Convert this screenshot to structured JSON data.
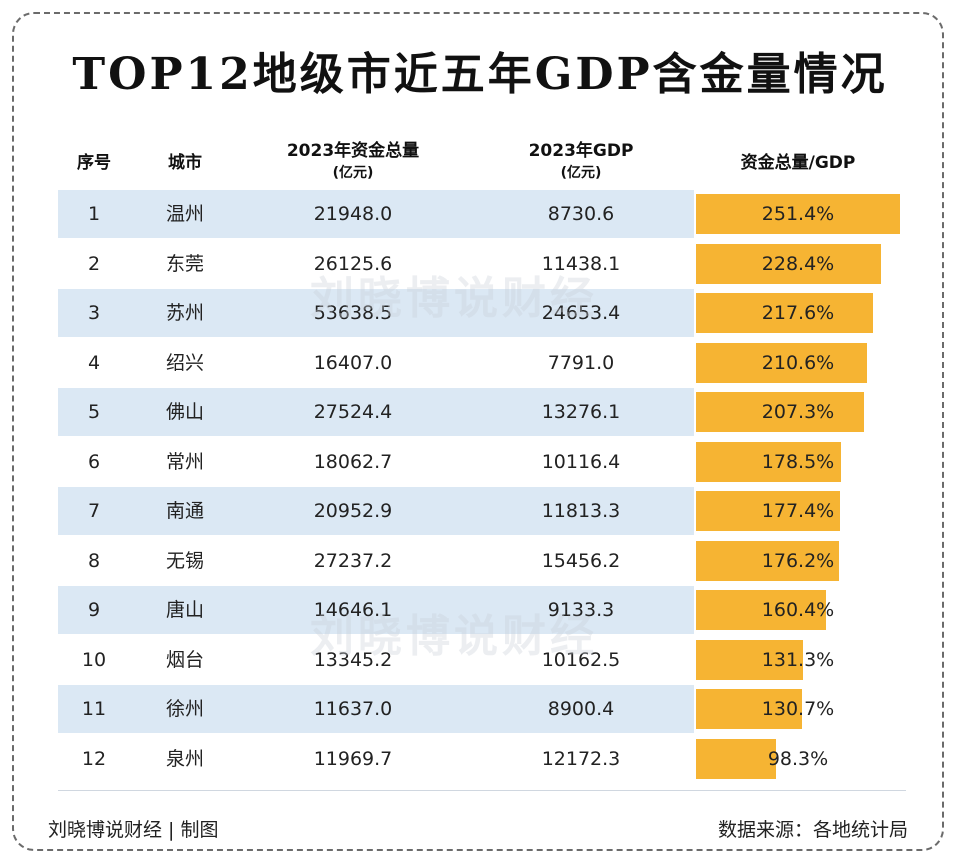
{
  "title": "TOP12地级市近五年GDP含金量情况",
  "headers": {
    "rank": "序号",
    "city": "城市",
    "funds": "2023年资金总量",
    "funds_unit": "(亿元)",
    "gdp": "2023年GDP",
    "gdp_unit": "(亿元)",
    "ratio": "资金总量/GDP"
  },
  "watermark": "刘晓博说财经",
  "footer": {
    "left": "刘晓博说财经 | 制图",
    "right": "数据来源：各地统计局"
  },
  "colors": {
    "bar": "#f6b433",
    "row_stripe": "#dbe8f4"
  },
  "chart_data": {
    "type": "table",
    "columns": [
      "序号",
      "城市",
      "2023年资金总量(亿元)",
      "2023年GDP(亿元)",
      "资金总量/GDP"
    ],
    "rows": [
      {
        "rank": "1",
        "city": "温州",
        "funds": "21948.0",
        "gdp": "8730.6",
        "ratio": "251.4%",
        "ratio_value": 251.4
      },
      {
        "rank": "2",
        "city": "东莞",
        "funds": "26125.6",
        "gdp": "11438.1",
        "ratio": "228.4%",
        "ratio_value": 228.4
      },
      {
        "rank": "3",
        "city": "苏州",
        "funds": "53638.5",
        "gdp": "24653.4",
        "ratio": "217.6%",
        "ratio_value": 217.6
      },
      {
        "rank": "4",
        "city": "绍兴",
        "funds": "16407.0",
        "gdp": "7791.0",
        "ratio": "210.6%",
        "ratio_value": 210.6
      },
      {
        "rank": "5",
        "city": "佛山",
        "funds": "27524.4",
        "gdp": "13276.1",
        "ratio": "207.3%",
        "ratio_value": 207.3
      },
      {
        "rank": "6",
        "city": "常州",
        "funds": "18062.7",
        "gdp": "10116.4",
        "ratio": "178.5%",
        "ratio_value": 178.5
      },
      {
        "rank": "7",
        "city": "南通",
        "funds": "20952.9",
        "gdp": "11813.3",
        "ratio": "177.4%",
        "ratio_value": 177.4
      },
      {
        "rank": "8",
        "city": "无锡",
        "funds": "27237.2",
        "gdp": "15456.2",
        "ratio": "176.2%",
        "ratio_value": 176.2
      },
      {
        "rank": "9",
        "city": "唐山",
        "funds": "14646.1",
        "gdp": "9133.3",
        "ratio": "160.4%",
        "ratio_value": 160.4
      },
      {
        "rank": "10",
        "city": "烟台",
        "funds": "13345.2",
        "gdp": "10162.5",
        "ratio": "131.3%",
        "ratio_value": 131.3
      },
      {
        "rank": "11",
        "city": "徐州",
        "funds": "11637.0",
        "gdp": "8900.4",
        "ratio": "130.7%",
        "ratio_value": 130.7
      },
      {
        "rank": "12",
        "city": "泉州",
        "funds": "11969.7",
        "gdp": "12172.3",
        "ratio": "98.3%",
        "ratio_value": 98.3
      }
    ],
    "bar_max": 251.4
  }
}
